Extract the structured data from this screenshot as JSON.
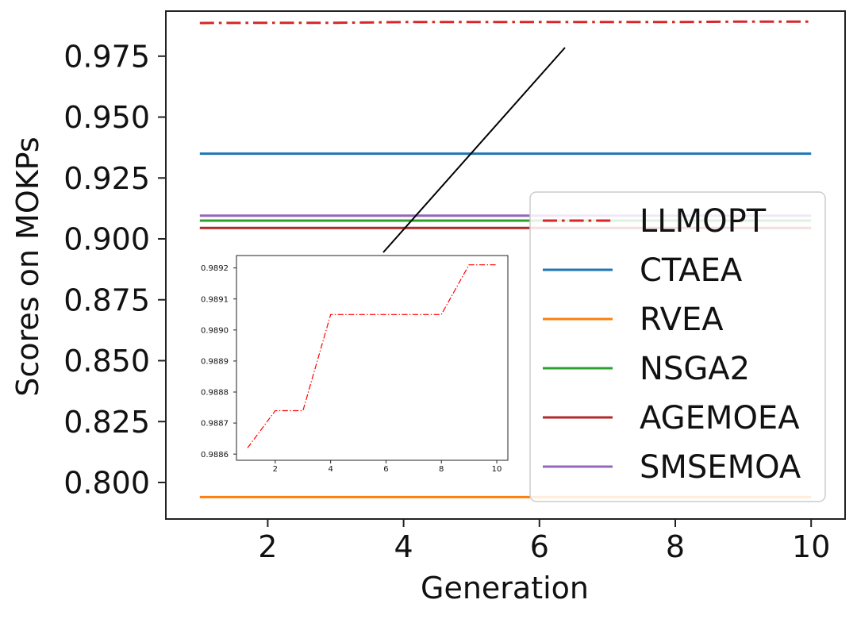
{
  "chart_data": [
    {
      "type": "line",
      "xlabel": "Generation",
      "ylabel": "Scores on MOKPs",
      "xlim": [
        0.5,
        10.5
      ],
      "ylim": [
        0.785,
        0.9935
      ],
      "x_ticks": [
        2,
        4,
        6,
        8,
        10
      ],
      "y_ticks": [
        0.8,
        0.825,
        0.85,
        0.875,
        0.9,
        0.925,
        0.95,
        0.975
      ],
      "y_tick_labels": [
        "0.800",
        "0.825",
        "0.850",
        "0.875",
        "0.900",
        "0.925",
        "0.950",
        "0.975"
      ],
      "grid": false,
      "legend_position": "right",
      "x": [
        1,
        2,
        3,
        4,
        5,
        6,
        7,
        8,
        9,
        10
      ],
      "series": [
        {
          "name": "LLMOPT",
          "color": "#d62728",
          "style": "dashdot",
          "values": [
            0.9886,
            0.9887,
            0.9887,
            0.989,
            0.989,
            0.989,
            0.989,
            0.989,
            0.9892,
            0.9892
          ]
        },
        {
          "name": "CTAEA",
          "color": "#1f77b4",
          "style": "solid",
          "values": [
            0.935,
            0.935,
            0.935,
            0.935,
            0.935,
            0.935,
            0.935,
            0.935,
            0.935,
            0.935
          ]
        },
        {
          "name": "RVEA",
          "color": "#ff7f0e",
          "style": "solid",
          "values": [
            0.794,
            0.794,
            0.794,
            0.794,
            0.794,
            0.794,
            0.794,
            0.794,
            0.794,
            0.794
          ]
        },
        {
          "name": "NSGA2",
          "color": "#2ca02c",
          "style": "solid",
          "values": [
            0.9075,
            0.9075,
            0.9075,
            0.9075,
            0.9075,
            0.9075,
            0.9075,
            0.9075,
            0.9075,
            0.9075
          ]
        },
        {
          "name": "AGEMOEA",
          "color": "#b22a2a",
          "style": "solid",
          "values": [
            0.9045,
            0.9045,
            0.9045,
            0.9045,
            0.9045,
            0.9045,
            0.9045,
            0.9045,
            0.9045,
            0.9045
          ]
        },
        {
          "name": "SMSEMOA",
          "color": "#9467bd",
          "style": "solid",
          "values": [
            0.9095,
            0.9095,
            0.9095,
            0.9095,
            0.9095,
            0.9095,
            0.9095,
            0.9095,
            0.9095,
            0.9095
          ]
        }
      ]
    },
    {
      "type": "line",
      "role": "inset",
      "xlabel": "",
      "ylabel": "",
      "xlim": [
        0.6,
        10.4
      ],
      "ylim": [
        0.98858,
        0.98924
      ],
      "x_ticks": [
        2,
        4,
        6,
        8,
        10
      ],
      "y_ticks": [
        0.9886,
        0.9887,
        0.9888,
        0.9889,
        0.989,
        0.9891,
        0.9892
      ],
      "y_tick_labels": [
        "0.9886",
        "0.9887",
        "0.9888",
        "0.9889",
        "0.9890",
        "0.9891",
        "0.9892"
      ],
      "grid": false,
      "x": [
        1,
        2,
        3,
        4,
        5,
        6,
        7,
        8,
        9,
        10
      ],
      "series": [
        {
          "color": "#ff0000",
          "style": "dashdot",
          "values": [
            0.98862,
            0.98874,
            0.98874,
            0.98905,
            0.98905,
            0.98905,
            0.98905,
            0.98905,
            0.98921,
            0.98921
          ]
        }
      ]
    }
  ]
}
